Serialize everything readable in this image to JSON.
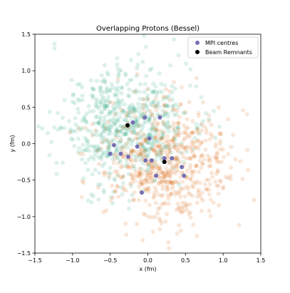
{
  "chart_data": {
    "type": "scatter",
    "title": "Overlapping Protons (Bessel)",
    "xlabel": "x (fm)",
    "ylabel": "y (fm)",
    "xlim": [
      -1.5,
      1.5
    ],
    "ylim": [
      -1.5,
      1.5
    ],
    "xticks": [
      "−1.5",
      "−1.0",
      "−0.5",
      "0.0",
      "0.5",
      "1.0",
      "1.5"
    ],
    "yticks": [
      "−1.5",
      "−1.0",
      "−0.5",
      "0.0",
      "0.5",
      "1.0",
      "1.5"
    ],
    "grid": false,
    "legend_position": "top-right",
    "clouds": [
      {
        "center": [
          -0.27,
          0.25
        ],
        "color": "#1b9e77",
        "opacity": 0.15,
        "count": 650,
        "spread": 0.42,
        "seed": 11
      },
      {
        "center": [
          0.22,
          -0.25
        ],
        "color": "#d95f02",
        "opacity": 0.15,
        "count": 650,
        "spread": 0.42,
        "seed": 29
      }
    ],
    "series": [
      {
        "name": "MPI centres",
        "color": "#7570b3",
        "points": [
          [
            -0.04,
            0.36
          ],
          [
            0.16,
            0.36
          ],
          [
            -0.2,
            0.29
          ],
          [
            0.02,
            0.07
          ],
          [
            -0.45,
            -0.02
          ],
          [
            -0.14,
            -0.04
          ],
          [
            0.22,
            -0.2
          ],
          [
            0.32,
            -0.2
          ],
          [
            -0.5,
            -0.14
          ],
          [
            -0.36,
            -0.14
          ],
          [
            -0.03,
            -0.23
          ],
          [
            0.05,
            -0.23
          ],
          [
            -0.26,
            -0.18
          ],
          [
            0.45,
            -0.32
          ],
          [
            0.48,
            -0.44
          ],
          [
            0.11,
            -0.44
          ],
          [
            -0.08,
            -0.67
          ]
        ]
      },
      {
        "name": "Beam Remnants",
        "color": "#000000",
        "points": [
          [
            -0.27,
            0.25
          ],
          [
            0.22,
            -0.25
          ]
        ]
      }
    ]
  }
}
